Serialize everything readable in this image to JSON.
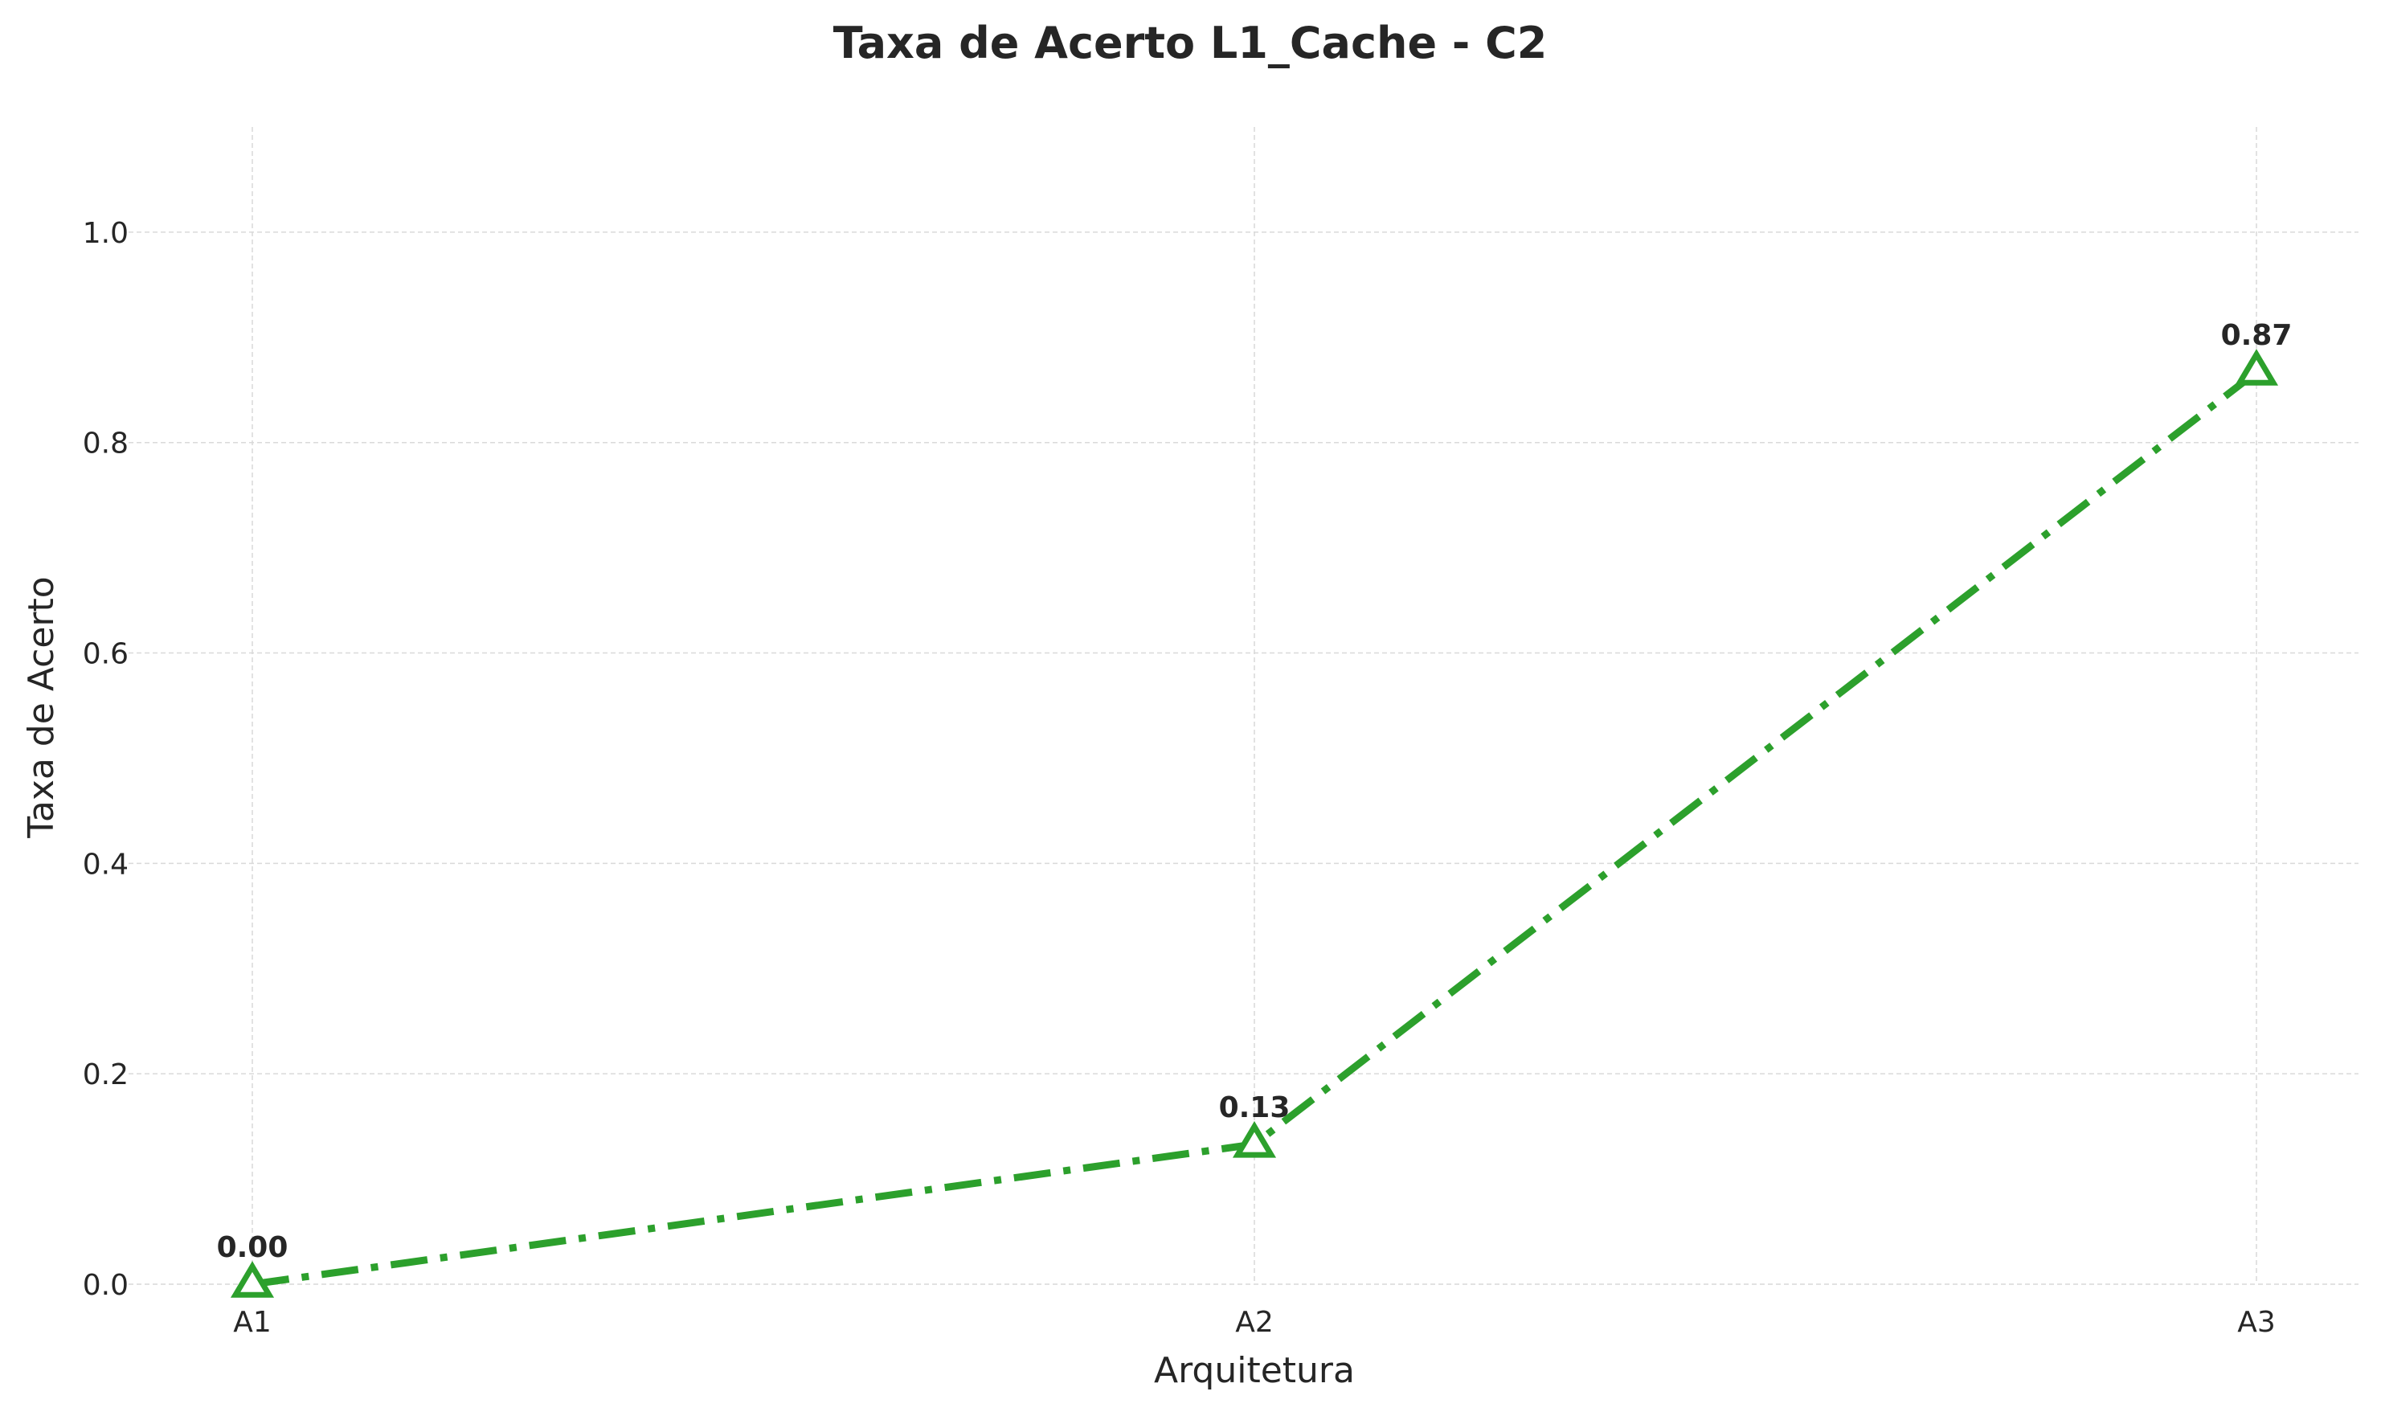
{
  "chart_data": {
    "type": "line",
    "title": "Taxa de Acerto L1_Cache - C2",
    "xlabel": "Arquitetura",
    "ylabel": "Taxa de Acerto",
    "categories": [
      "A1",
      "A2",
      "A3"
    ],
    "series": [
      {
        "values": [
          0.0,
          0.133,
          0.867
        ],
        "labels": [
          "0.00",
          "0.13",
          "0.87"
        ],
        "color": "#2ca02c",
        "marker": "triangle-open",
        "line_style": "dash-dot"
      }
    ],
    "ylim": [
      0,
      1.1
    ],
    "yticks": [
      0.0,
      0.2,
      0.4,
      0.6,
      0.8,
      1.0
    ],
    "ytick_labels": [
      "0.0",
      "0.2",
      "0.4",
      "0.6",
      "0.8",
      "1.0"
    ],
    "grid": true,
    "legend": "none"
  }
}
